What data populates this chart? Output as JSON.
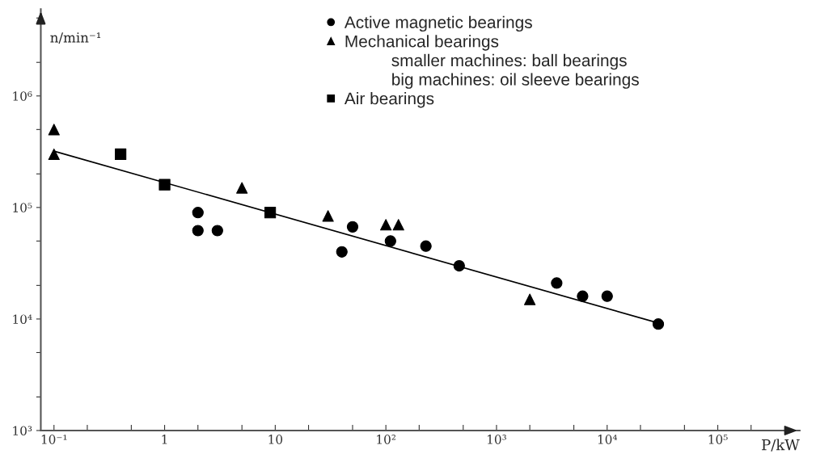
{
  "chart_data": {
    "type": "scatter",
    "xlabel": "P/kW",
    "ylabel": "n/min⁻¹",
    "log": "xy",
    "grid": false,
    "legend": "top",
    "xlim": [
      0.076,
      550000
    ],
    "ylim": [
      1000,
      6000000
    ],
    "xticks": [
      {
        "value": 0.1,
        "label": "10⁻¹"
      },
      {
        "value": 0.2,
        "label": null
      },
      {
        "value": 0.5,
        "label": null
      },
      1,
      {
        "value": 2,
        "label": null
      },
      {
        "value": 5,
        "label": null
      },
      10,
      {
        "value": 20,
        "label": null
      },
      {
        "value": 50,
        "label": null
      },
      {
        "value": 100,
        "label": "10²"
      },
      {
        "value": 200,
        "label": null
      },
      {
        "value": 500,
        "label": null
      },
      {
        "value": 1000,
        "label": "10³"
      },
      {
        "value": 2000,
        "label": null
      },
      {
        "value": 5000,
        "label": null
      },
      {
        "value": 10000,
        "label": "10⁴"
      },
      {
        "value": 20000,
        "label": null
      },
      {
        "value": 50000,
        "label": null
      },
      {
        "value": 100000,
        "label": "10⁵"
      },
      {
        "value": 200000,
        "label": null
      }
    ],
    "yticks": [
      {
        "value": 1000,
        "label": "10³"
      },
      {
        "value": 2000,
        "label": null
      },
      {
        "value": 5000,
        "label": null
      },
      {
        "value": 10000,
        "label": "10⁴"
      },
      {
        "value": 20000,
        "label": null
      },
      {
        "value": 50000,
        "label": null
      },
      {
        "value": 100000,
        "label": "10⁵"
      },
      {
        "value": 200000,
        "label": null
      },
      {
        "value": 500000,
        "label": null
      },
      {
        "value": 1000000,
        "label": "10⁶"
      },
      {
        "value": 2000000,
        "label": null
      },
      {
        "value": 5000000,
        "label": null
      }
    ],
    "annotations": [
      "smaller machines: ball bearings",
      "big machines: oil sleeve bearings"
    ],
    "series": [
      {
        "name": "Active magnetic bearings",
        "marker": "circle",
        "color": "#000000",
        "x": [
          2,
          2,
          3,
          40,
          50,
          110,
          230,
          460,
          3500,
          6000,
          10000,
          29000
        ],
        "values": [
          90000,
          62000,
          62000,
          40000,
          67000,
          50000,
          45000,
          30000,
          21000,
          16000,
          16000,
          9000
        ]
      },
      {
        "name": "Mechanical bearings",
        "marker": "triangle",
        "color": "#000000",
        "x": [
          0.1,
          0.1,
          5,
          30,
          100,
          130,
          2000
        ],
        "values": [
          500000,
          300000,
          150000,
          84000,
          70000,
          70000,
          15000
        ]
      },
      {
        "name": "Air bearings",
        "marker": "square",
        "color": "#000000",
        "x": [
          0.4,
          1,
          9
        ],
        "values": [
          300000,
          160000,
          90000
        ]
      },
      {
        "type": "line",
        "marker": "none",
        "line_style": "solid",
        "color": "#000000",
        "x": [
          0.1,
          29000
        ],
        "values": [
          320000,
          9200
        ]
      }
    ]
  }
}
